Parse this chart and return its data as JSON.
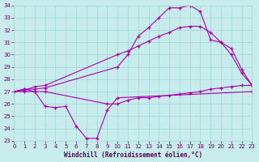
{
  "xlabel": "Windchill (Refroidissement éolien,°C)",
  "bg_color": "#c8ecec",
  "grid_color": "#9dd8d8",
  "line_color": "#aa00aa",
  "xmin": 0,
  "xmax": 23,
  "ymin": 23,
  "ymax": 34,
  "line_jagged_x": [
    0,
    1,
    2,
    3,
    4,
    5,
    6,
    7,
    8,
    9,
    10,
    23
  ],
  "line_jagged_y": [
    27.0,
    27.2,
    27.0,
    25.8,
    25.7,
    25.8,
    24.2,
    23.2,
    23.2,
    25.5,
    26.5,
    27.0
  ],
  "line_diagonal_x": [
    0,
    1,
    2,
    3,
    10,
    11,
    12,
    13,
    14,
    15,
    16,
    17,
    18,
    19,
    20,
    21,
    22,
    23
  ],
  "line_diagonal_y": [
    27.0,
    27.1,
    27.4,
    27.5,
    30.0,
    30.3,
    30.7,
    31.1,
    31.5,
    31.8,
    32.2,
    32.3,
    32.3,
    31.8,
    31.0,
    30.0,
    28.5,
    27.5
  ],
  "line_peak_x": [
    0,
    1,
    2,
    3,
    10,
    11,
    12,
    13,
    14,
    15,
    16,
    17,
    18,
    19,
    20,
    21,
    22,
    23
  ],
  "line_peak_y": [
    27.0,
    27.2,
    27.2,
    27.3,
    29.0,
    30.0,
    31.5,
    32.2,
    33.0,
    33.8,
    33.8,
    34.0,
    33.5,
    31.2,
    31.0,
    30.5,
    28.8,
    27.5
  ],
  "line_flat_x": [
    0,
    1,
    2,
    3,
    9,
    10,
    11,
    12,
    13,
    14,
    15,
    16,
    17,
    18,
    19,
    20,
    21,
    22,
    23
  ],
  "line_flat_y": [
    27.0,
    27.0,
    27.0,
    27.0,
    26.0,
    26.0,
    26.3,
    26.5,
    26.5,
    26.6,
    26.7,
    26.8,
    26.9,
    27.0,
    27.2,
    27.3,
    27.4,
    27.5,
    27.5
  ]
}
